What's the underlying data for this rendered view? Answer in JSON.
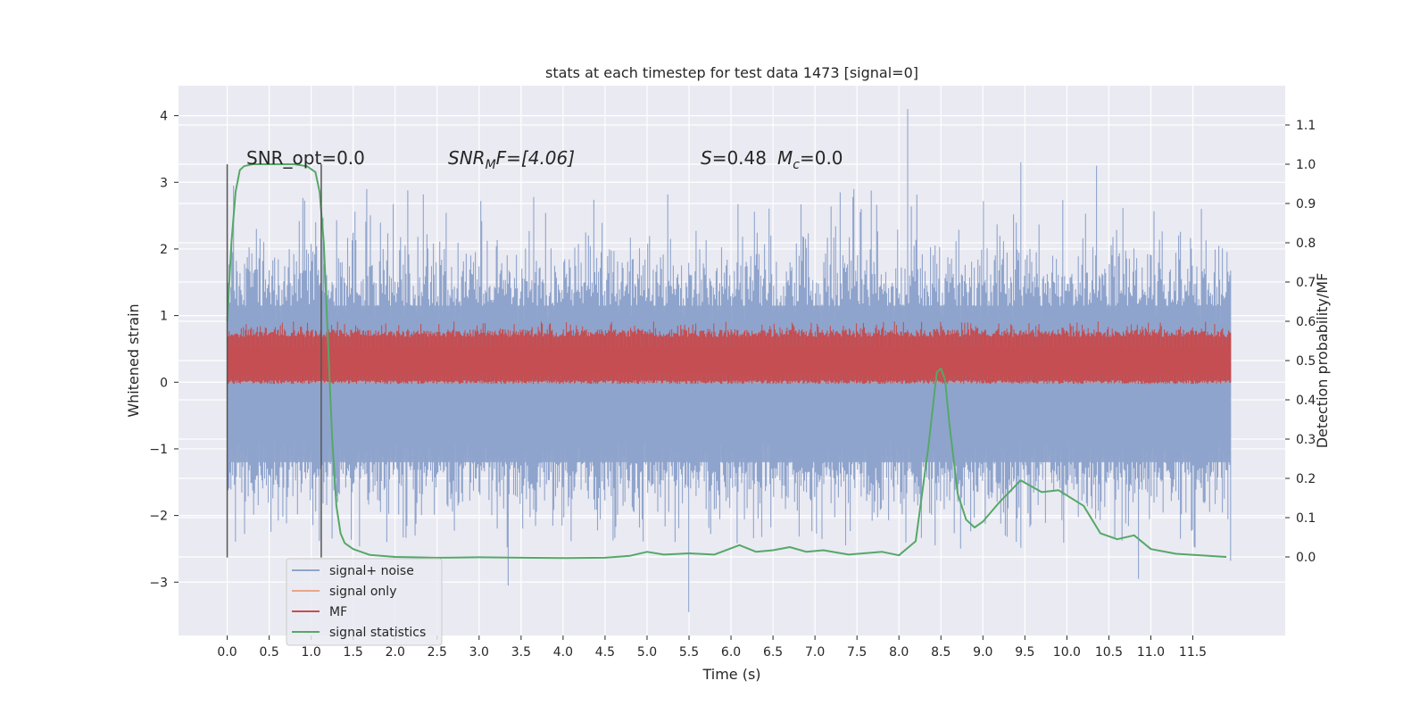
{
  "chart_data": {
    "type": "line",
    "title": "stats at each timestep for test data 1473 [signal=0]",
    "xlabel": "Time (s)",
    "ylabel_left": "Whitened strain",
    "ylabel_right": "Detection probability/MF",
    "xlim": [
      -0.58,
      12.6
    ],
    "ylim_left": [
      -3.8,
      4.45
    ],
    "ylim_right": [
      -0.2,
      1.2
    ],
    "xticks": [
      "0.0",
      "0.5",
      "1.0",
      "1.5",
      "2.0",
      "2.5",
      "3.0",
      "3.5",
      "4.0",
      "4.5",
      "5.0",
      "5.5",
      "6.0",
      "6.5",
      "7.0",
      "7.5",
      "8.0",
      "8.5",
      "9.0",
      "9.5",
      "10.0",
      "10.5",
      "11.0",
      "11.5"
    ],
    "yticks_left": [
      "−3",
      "−2",
      "−1",
      "0",
      "1",
      "2",
      "3",
      "4"
    ],
    "yticks_right": [
      "0.0",
      "0.1",
      "0.2",
      "0.3",
      "0.4",
      "0.5",
      "0.6",
      "0.7",
      "0.8",
      "0.9",
      "1.0",
      "1.1"
    ],
    "grid": true,
    "legend_position": "lower-left",
    "annotations": {
      "snr_opt": "SNR_opt=0.0",
      "snr_mf": "SNR<sub>M</sub>F=[4.06]",
      "s_mc": "S=0.48   M_c=0.0"
    },
    "annotation_parts": {
      "snr_mf_main": "SNR",
      "snr_mf_sub": "M",
      "snr_mf_rest": "F=[4.06]",
      "s_label": "S",
      "s_value": "=0.48",
      "mc_label": "M",
      "mc_sub": "c",
      "mc_value": "=0.0"
    },
    "window_markers": {
      "x": [
        0.0,
        1.12
      ],
      "y_range": [
        -2.63,
        3.27
      ]
    },
    "series": [
      {
        "name": "signal+ noise",
        "color": "#8fa4cc",
        "axis": "left",
        "x_range": [
          0.0,
          11.95
        ],
        "mean": 0.0,
        "envelope_typical": [
          -1.55,
          1.6
        ],
        "peaks": [
          {
            "x": 0.08,
            "y": 2.95
          },
          {
            "x": 0.35,
            "y": 2.3
          },
          {
            "x": 1.05,
            "y": 2.4
          },
          {
            "x": 2.15,
            "y": 2.88
          },
          {
            "x": 3.35,
            "y": -3.05
          },
          {
            "x": 5.5,
            "y": -3.45
          },
          {
            "x": 7.3,
            "y": 2.85
          },
          {
            "x": 8.1,
            "y": 4.1
          },
          {
            "x": 9.45,
            "y": 3.3
          },
          {
            "x": 10.35,
            "y": 3.25
          },
          {
            "x": 10.85,
            "y": -2.95
          },
          {
            "x": 11.6,
            "y": 2.6
          },
          {
            "x": 11.95,
            "y": -2.68
          }
        ]
      },
      {
        "name": "signal only",
        "color": "#e8a68b",
        "axis": "left",
        "x": [
          0.0,
          11.95
        ],
        "y": [
          0.0,
          0.0
        ]
      },
      {
        "name": "MF",
        "color": "#c44e52",
        "axis": "right",
        "x_range": [
          0.0,
          11.95
        ],
        "mean": 0.5,
        "envelope_typical": [
          0.45,
          0.56
        ],
        "peak_max": 0.6
      },
      {
        "name": "signal statistics",
        "color": "#55a868",
        "axis": "right",
        "x": [
          0.0,
          0.05,
          0.1,
          0.15,
          0.2,
          0.3,
          0.5,
          0.8,
          0.95,
          1.05,
          1.1,
          1.15,
          1.2,
          1.25,
          1.3,
          1.35,
          1.4,
          1.5,
          1.7,
          2.0,
          2.5,
          3.0,
          3.5,
          4.0,
          4.5,
          4.8,
          5.0,
          5.2,
          5.5,
          5.8,
          6.1,
          6.3,
          6.5,
          6.7,
          6.9,
          7.1,
          7.4,
          7.8,
          8.0,
          8.2,
          8.35,
          8.45,
          8.5,
          8.55,
          8.6,
          8.7,
          8.8,
          8.9,
          9.0,
          9.2,
          9.45,
          9.7,
          9.9,
          10.2,
          10.4,
          10.6,
          10.8,
          11.0,
          11.3,
          11.6,
          11.9
        ],
        "y": [
          0.6,
          0.8,
          0.93,
          0.985,
          0.995,
          1.0,
          1.0,
          1.0,
          0.995,
          0.98,
          0.93,
          0.8,
          0.55,
          0.3,
          0.13,
          0.06,
          0.035,
          0.02,
          0.005,
          0.0,
          -0.002,
          -0.001,
          -0.002,
          -0.003,
          -0.002,
          0.003,
          0.013,
          0.006,
          0.009,
          0.006,
          0.03,
          0.013,
          0.017,
          0.025,
          0.013,
          0.017,
          0.006,
          0.013,
          0.004,
          0.04,
          0.28,
          0.47,
          0.48,
          0.45,
          0.34,
          0.16,
          0.095,
          0.075,
          0.09,
          0.14,
          0.195,
          0.165,
          0.17,
          0.13,
          0.06,
          0.045,
          0.055,
          0.02,
          0.008,
          0.004,
          0.0
        ]
      }
    ],
    "legend": [
      "signal+ noise",
      "signal only",
      "MF",
      "signal statistics"
    ]
  }
}
